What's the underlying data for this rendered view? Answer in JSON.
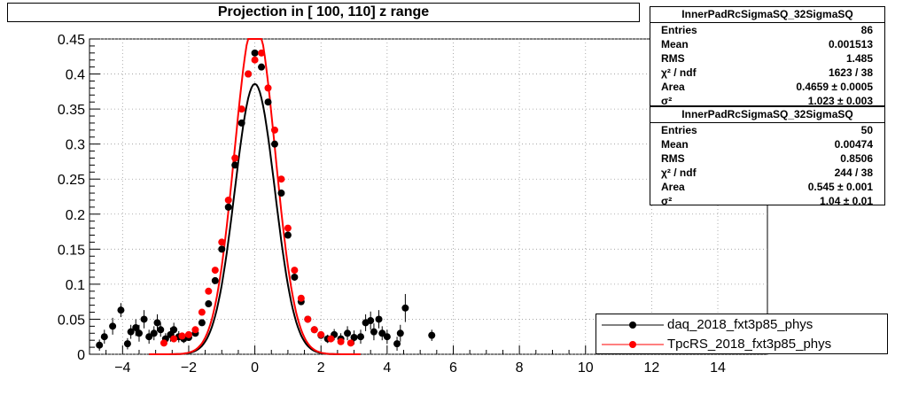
{
  "title": "Projection in [ 100, 110] z range",
  "stats_boxes": [
    {
      "name": "InnerPadRcSigmaSQ_32SigmaSQ",
      "rows": [
        {
          "label": "Entries",
          "value": "86"
        },
        {
          "label": "Mean",
          "value": "0.001513"
        },
        {
          "label": "RMS",
          "value": "1.485"
        },
        {
          "label": "χ² / ndf",
          "value": "1623 / 38"
        },
        {
          "label": "Area",
          "value": "0.4659 ± 0.0005"
        },
        {
          "label": "σ²",
          "value": "1.023 ± 0.003"
        }
      ]
    },
    {
      "name": "InnerPadRcSigmaSQ_32SigmaSQ",
      "rows": [
        {
          "label": "Entries",
          "value": "50"
        },
        {
          "label": "Mean",
          "value": "0.00474"
        },
        {
          "label": "RMS",
          "value": "0.8506"
        },
        {
          "label": "χ² / ndf",
          "value": "244 / 38"
        },
        {
          "label": "Area",
          "value": "0.545 ± 0.001"
        },
        {
          "label": "σ²",
          "value": "1.04 ± 0.01"
        }
      ]
    }
  ],
  "legend": [
    {
      "label": "daq_2018_fxt3p85_phys",
      "color": "#000000"
    },
    {
      "label": "TpcRS_2018_fxt3p85_phys",
      "color": "#ff0000"
    }
  ],
  "chart_data": {
    "type": "scatter",
    "xlim": [
      -5,
      15.5
    ],
    "ylim": [
      0,
      0.45
    ],
    "x_ticks": [
      -4,
      -2,
      0,
      2,
      4,
      6,
      8,
      10,
      12,
      14
    ],
    "x_tick_labels": [
      "−4",
      "−2",
      "0",
      "2",
      "4",
      "6",
      "8",
      "10",
      "12",
      "14"
    ],
    "y_ticks": [
      0,
      0.05,
      0.1,
      0.15,
      0.2,
      0.25,
      0.3,
      0.35,
      0.4,
      0.45
    ],
    "y_tick_labels": [
      "0",
      "0.05",
      "0.1",
      "0.15",
      "0.2",
      "0.25",
      "0.3",
      "0.35",
      "0.4",
      "0.45"
    ],
    "series": [
      {
        "name": "daq_2018_fxt3p85_phys",
        "color": "#000000",
        "points": [
          {
            "x": -4.7,
            "y": 0.013,
            "err": 0.008
          },
          {
            "x": -4.55,
            "y": 0.025,
            "err": 0.01
          },
          {
            "x": -4.3,
            "y": 0.04,
            "err": 0.012
          },
          {
            "x": -4.05,
            "y": 0.063,
            "err": 0.01
          },
          {
            "x": -3.85,
            "y": 0.015,
            "err": 0.008
          },
          {
            "x": -3.75,
            "y": 0.032,
            "err": 0.01
          },
          {
            "x": -3.6,
            "y": 0.038,
            "err": 0.012
          },
          {
            "x": -3.5,
            "y": 0.03,
            "err": 0.012
          },
          {
            "x": -3.35,
            "y": 0.05,
            "err": 0.013
          },
          {
            "x": -3.2,
            "y": 0.025,
            "err": 0.01
          },
          {
            "x": -3.05,
            "y": 0.03,
            "err": 0.01
          },
          {
            "x": -2.95,
            "y": 0.045,
            "err": 0.012
          },
          {
            "x": -2.85,
            "y": 0.035,
            "err": 0.01
          },
          {
            "x": -2.7,
            "y": 0.022,
            "err": 0.008
          },
          {
            "x": -2.55,
            "y": 0.028,
            "err": 0.01
          },
          {
            "x": -2.45,
            "y": 0.035,
            "err": 0.01
          },
          {
            "x": -2.3,
            "y": 0.025,
            "err": 0.008
          },
          {
            "x": -2.15,
            "y": 0.022,
            "err": 0.006
          },
          {
            "x": -2.0,
            "y": 0.024,
            "err": 0.005
          },
          {
            "x": -1.8,
            "y": 0.03,
            "err": 0.004
          },
          {
            "x": -1.6,
            "y": 0.045,
            "err": 0.004
          },
          {
            "x": -1.4,
            "y": 0.072,
            "err": 0.004
          },
          {
            "x": -1.2,
            "y": 0.105,
            "err": 0.004
          },
          {
            "x": -1.0,
            "y": 0.15,
            "err": 0.004
          },
          {
            "x": -0.8,
            "y": 0.21,
            "err": 0.004
          },
          {
            "x": -0.6,
            "y": 0.27,
            "err": 0.004
          },
          {
            "x": -0.4,
            "y": 0.33,
            "err": 0.004
          },
          {
            "x": -0.2,
            "y": 0.4,
            "err": 0.004
          },
          {
            "x": 0.0,
            "y": 0.43,
            "err": 0.004
          },
          {
            "x": 0.2,
            "y": 0.41,
            "err": 0.004
          },
          {
            "x": 0.4,
            "y": 0.36,
            "err": 0.004
          },
          {
            "x": 0.6,
            "y": 0.3,
            "err": 0.004
          },
          {
            "x": 0.8,
            "y": 0.23,
            "err": 0.004
          },
          {
            "x": 1.0,
            "y": 0.17,
            "err": 0.004
          },
          {
            "x": 1.2,
            "y": 0.11,
            "err": 0.004
          },
          {
            "x": 1.4,
            "y": 0.075,
            "err": 0.004
          },
          {
            "x": 1.6,
            "y": 0.05,
            "err": 0.004
          },
          {
            "x": 1.8,
            "y": 0.035,
            "err": 0.004
          },
          {
            "x": 2.0,
            "y": 0.027,
            "err": 0.005
          },
          {
            "x": 2.2,
            "y": 0.022,
            "err": 0.006
          },
          {
            "x": 2.4,
            "y": 0.028,
            "err": 0.008
          },
          {
            "x": 2.6,
            "y": 0.022,
            "err": 0.008
          },
          {
            "x": 2.8,
            "y": 0.03,
            "err": 0.01
          },
          {
            "x": 3.0,
            "y": 0.024,
            "err": 0.01
          },
          {
            "x": 3.2,
            "y": 0.025,
            "err": 0.01
          },
          {
            "x": 3.35,
            "y": 0.045,
            "err": 0.012
          },
          {
            "x": 3.5,
            "y": 0.048,
            "err": 0.013
          },
          {
            "x": 3.6,
            "y": 0.032,
            "err": 0.012
          },
          {
            "x": 3.75,
            "y": 0.05,
            "err": 0.013
          },
          {
            "x": 3.85,
            "y": 0.03,
            "err": 0.01
          },
          {
            "x": 4.0,
            "y": 0.025,
            "err": 0.01
          },
          {
            "x": 4.3,
            "y": 0.015,
            "err": 0.01
          },
          {
            "x": 4.4,
            "y": 0.03,
            "err": 0.012
          },
          {
            "x": 4.55,
            "y": 0.066,
            "err": 0.02
          },
          {
            "x": 5.35,
            "y": 0.027,
            "err": 0.008
          }
        ],
        "fit": {
          "area": 0.4659,
          "sigma2": 1.023
        }
      },
      {
        "name": "TpcRS_2018_fxt3p85_phys",
        "color": "#ff0000",
        "points": [
          {
            "x": -2.75,
            "y": 0.016,
            "err": 0.003
          },
          {
            "x": -2.45,
            "y": 0.022,
            "err": 0.003
          },
          {
            "x": -2.2,
            "y": 0.026,
            "err": 0.003
          },
          {
            "x": -2.0,
            "y": 0.028,
            "err": 0.003
          },
          {
            "x": -1.8,
            "y": 0.035,
            "err": 0.003
          },
          {
            "x": -1.6,
            "y": 0.06,
            "err": 0.003
          },
          {
            "x": -1.4,
            "y": 0.09,
            "err": 0.003
          },
          {
            "x": -1.2,
            "y": 0.12,
            "err": 0.003
          },
          {
            "x": -1.0,
            "y": 0.16,
            "err": 0.003
          },
          {
            "x": -0.8,
            "y": 0.22,
            "err": 0.003
          },
          {
            "x": -0.6,
            "y": 0.28,
            "err": 0.003
          },
          {
            "x": -0.4,
            "y": 0.35,
            "err": 0.003
          },
          {
            "x": -0.2,
            "y": 0.4,
            "err": 0.003
          },
          {
            "x": 0.0,
            "y": 0.42,
            "err": 0.003
          },
          {
            "x": 0.2,
            "y": 0.43,
            "err": 0.003
          },
          {
            "x": 0.4,
            "y": 0.38,
            "err": 0.003
          },
          {
            "x": 0.6,
            "y": 0.32,
            "err": 0.003
          },
          {
            "x": 0.8,
            "y": 0.25,
            "err": 0.003
          },
          {
            "x": 1.0,
            "y": 0.18,
            "err": 0.003
          },
          {
            "x": 1.2,
            "y": 0.12,
            "err": 0.003
          },
          {
            "x": 1.4,
            "y": 0.08,
            "err": 0.003
          },
          {
            "x": 1.6,
            "y": 0.05,
            "err": 0.003
          },
          {
            "x": 1.8,
            "y": 0.035,
            "err": 0.003
          },
          {
            "x": 2.0,
            "y": 0.028,
            "err": 0.003
          },
          {
            "x": 2.3,
            "y": 0.022,
            "err": 0.003
          },
          {
            "x": 2.6,
            "y": 0.018,
            "err": 0.003
          },
          {
            "x": 2.9,
            "y": 0.016,
            "err": 0.003
          }
        ],
        "fit": {
          "area": 0.545,
          "sigma2": 1.04
        }
      }
    ]
  }
}
